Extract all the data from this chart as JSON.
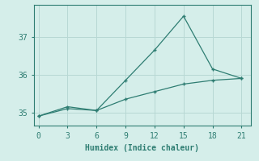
{
  "xlabel": "Humidex (Indice chaleur)",
  "ylabel": "",
  "background_color": "#d5eeea",
  "grid_color": "#b8d8d4",
  "line_color": "#2e7d72",
  "line1_x": [
    0,
    3,
    6,
    9,
    12,
    15,
    18,
    21
  ],
  "line1_y": [
    34.9,
    35.1,
    35.05,
    35.35,
    35.55,
    35.75,
    35.85,
    35.9
  ],
  "line2_x": [
    0,
    3,
    6,
    9,
    12,
    15,
    18,
    21
  ],
  "line2_y": [
    34.9,
    35.15,
    35.05,
    35.85,
    36.65,
    37.55,
    36.15,
    35.9
  ],
  "xlim": [
    -0.5,
    22
  ],
  "ylim": [
    34.65,
    37.85
  ],
  "xticks": [
    0,
    3,
    6,
    9,
    12,
    15,
    18,
    21
  ],
  "yticks": [
    35,
    36,
    37
  ],
  "axis_fontsize": 7,
  "tick_fontsize": 7
}
